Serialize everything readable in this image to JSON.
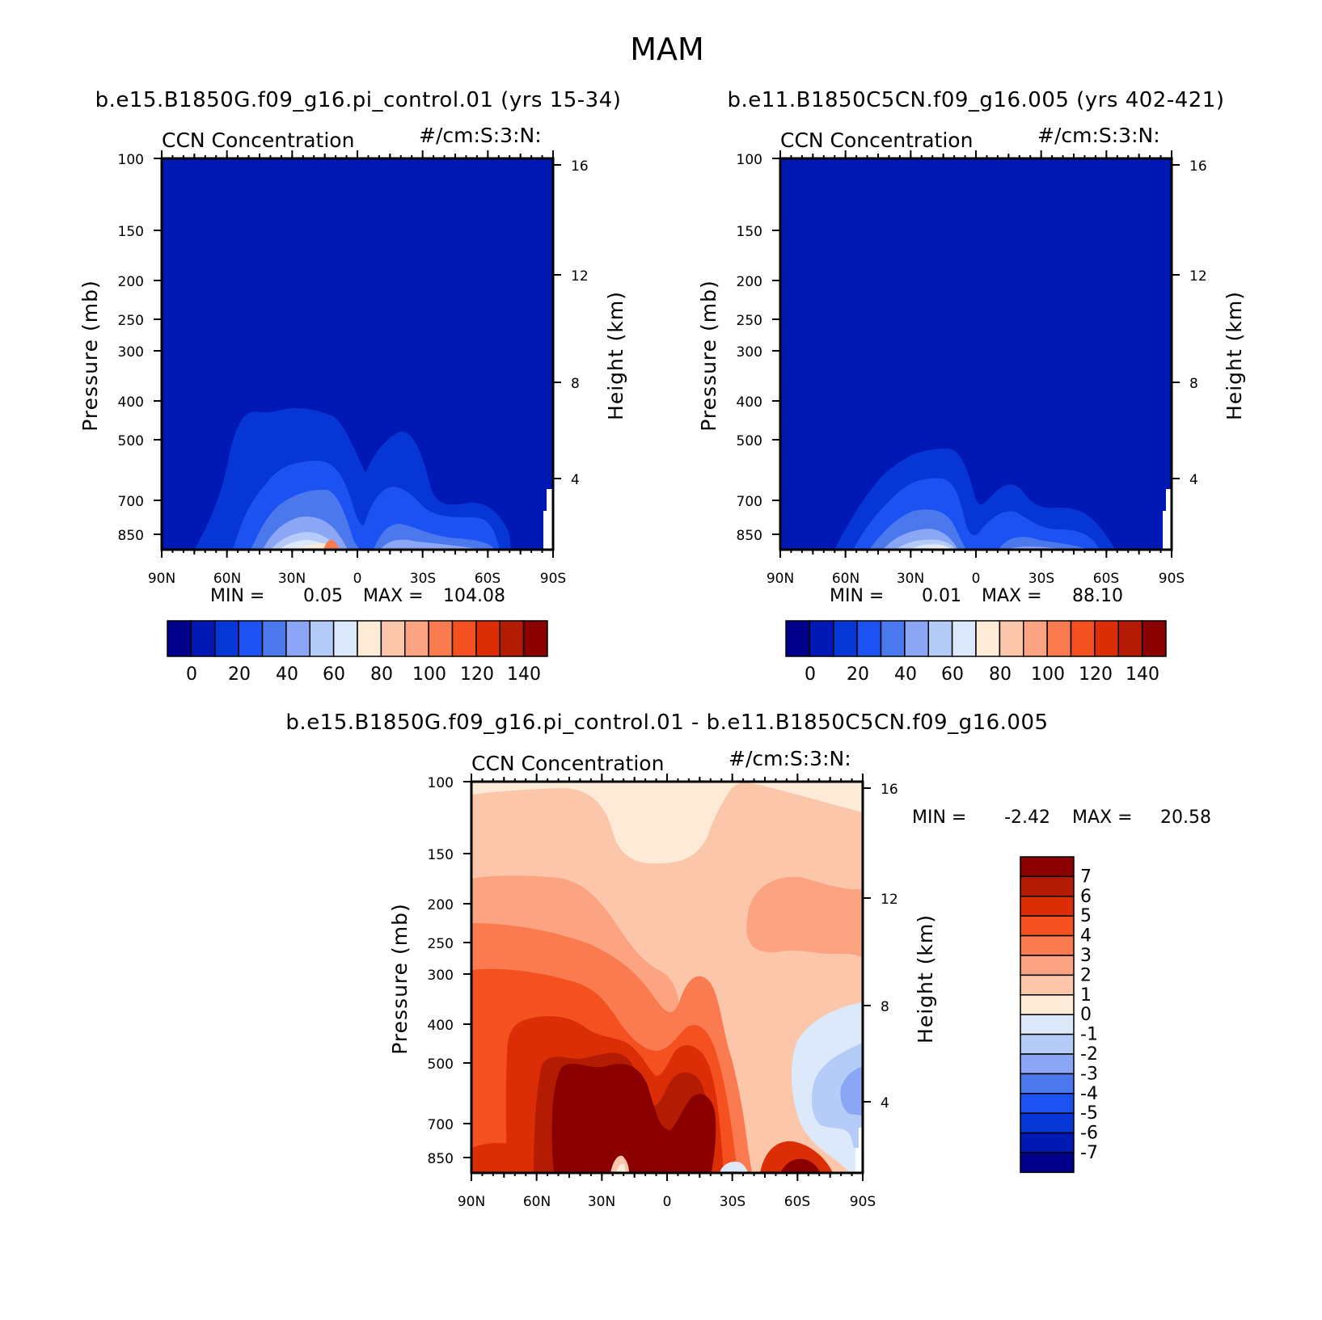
{
  "figure_title": "MAM",
  "chart_data": [
    {
      "type": "heatmap",
      "title": "b.e15.B1850G.f09_g16.pi_control.01 (yrs 15-34)",
      "left_string": "CCN Concentration",
      "right_string": "#/cm:S:3:N:",
      "xlabel": "",
      "ylabel": "Pressure (mb)",
      "ylabel_right": "Height (km)",
      "x_ticks": [
        "90N",
        "60N",
        "30N",
        "0",
        "30S",
        "60S",
        "90S"
      ],
      "y_ticks": [
        "100",
        "150",
        "200",
        "250",
        "300",
        "400",
        "500",
        "700",
        "850"
      ],
      "y_ticks_right": [
        "16",
        "12",
        "8",
        "4"
      ],
      "ylim": [
        100,
        925
      ],
      "min_label": "MIN =",
      "min_value": "0.05",
      "max_label": "MAX =",
      "max_value": "104.08",
      "colorbar_labels": [
        "0",
        "20",
        "40",
        "60",
        "80",
        "100",
        "120",
        "140"
      ],
      "colorbar_colors": [
        "#00008b",
        "#0018b4",
        "#0636d6",
        "#1c52f2",
        "#4c78ee",
        "#8aa6f5",
        "#b5cbf8",
        "#dce9fb",
        "#fdebd8",
        "#fcc6ab",
        "#fca381",
        "#fb7b50",
        "#f5501f",
        "#dc2e06",
        "#b31b03",
        "#8a0000"
      ]
    },
    {
      "type": "heatmap",
      "title": "b.e11.B1850C5CN.f09_g16.005 (yrs 402-421)",
      "left_string": "CCN Concentration",
      "right_string": "#/cm:S:3:N:",
      "xlabel": "",
      "ylabel": "Pressure (mb)",
      "ylabel_right": "Height (km)",
      "x_ticks": [
        "90N",
        "60N",
        "30N",
        "0",
        "30S",
        "60S",
        "90S"
      ],
      "y_ticks": [
        "100",
        "150",
        "200",
        "250",
        "300",
        "400",
        "500",
        "700",
        "850"
      ],
      "y_ticks_right": [
        "16",
        "12",
        "8",
        "4"
      ],
      "ylim": [
        100,
        925
      ],
      "min_label": "MIN =",
      "min_value": "0.01",
      "max_label": "MAX =",
      "max_value": "88.10",
      "colorbar_labels": [
        "0",
        "20",
        "40",
        "60",
        "80",
        "100",
        "120",
        "140"
      ],
      "colorbar_colors": [
        "#00008b",
        "#0018b4",
        "#0636d6",
        "#1c52f2",
        "#4c78ee",
        "#8aa6f5",
        "#b5cbf8",
        "#dce9fb",
        "#fdebd8",
        "#fcc6ab",
        "#fca381",
        "#fb7b50",
        "#f5501f",
        "#dc2e06",
        "#b31b03",
        "#8a0000"
      ]
    },
    {
      "type": "heatmap",
      "title": "b.e15.B1850G.f09_g16.pi_control.01 - b.e11.B1850C5CN.f09_g16.005",
      "left_string": "CCN Concentration",
      "right_string": "#/cm:S:3:N:",
      "xlabel": "",
      "ylabel": "Pressure (mb)",
      "ylabel_right": "Height (km)",
      "x_ticks": [
        "90N",
        "60N",
        "30N",
        "0",
        "30S",
        "60S",
        "90S"
      ],
      "y_ticks": [
        "100",
        "150",
        "200",
        "250",
        "300",
        "400",
        "500",
        "700",
        "850"
      ],
      "y_ticks_right": [
        "16",
        "12",
        "8",
        "4"
      ],
      "ylim": [
        100,
        925
      ],
      "min_label": "MIN =",
      "min_value": "-2.42",
      "max_label": "MAX =",
      "max_value": "20.58",
      "colorbar_labels": [
        "7",
        "6",
        "5",
        "4",
        "3",
        "2",
        "1",
        "0",
        "-1",
        "-2",
        "-3",
        "-4",
        "-5",
        "-6",
        "-7"
      ],
      "colorbar_colors": [
        "#8a0000",
        "#b31b03",
        "#dc2e06",
        "#f5501f",
        "#fb7b50",
        "#fca381",
        "#fcc6ab",
        "#fdebd8",
        "#dce9fb",
        "#b5cbf8",
        "#8aa6f5",
        "#4c78ee",
        "#1c52f2",
        "#0636d6",
        "#0018b4",
        "#00008b"
      ]
    }
  ]
}
